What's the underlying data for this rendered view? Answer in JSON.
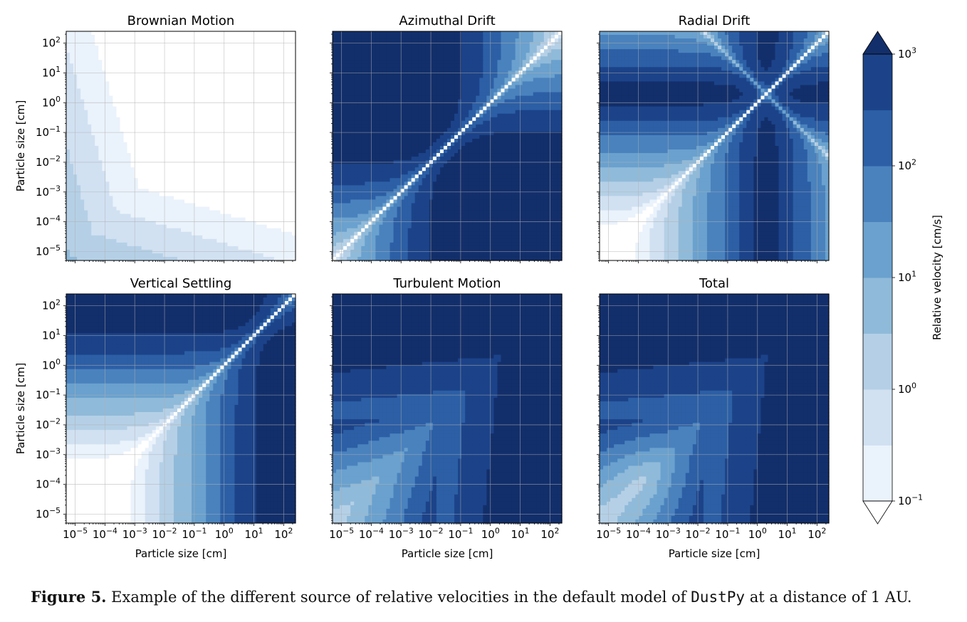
{
  "chart_data": {
    "type": "heatmap",
    "layout": "2x3 grid of filled contour panels sharing one log color scale",
    "x_axis": {
      "label": "Particle size [cm]",
      "scale": "log",
      "range": [
        5e-06,
        250
      ],
      "ticks": [
        1e-05,
        0.0001,
        0.001,
        0.01,
        0.1,
        1.0,
        10.0,
        100.0
      ],
      "tick_labels": [
        {
          "base": "10",
          "exp": "−5"
        },
        {
          "base": "10",
          "exp": "−4"
        },
        {
          "base": "10",
          "exp": "−3"
        },
        {
          "base": "10",
          "exp": "−2"
        },
        {
          "base": "10",
          "exp": "−1"
        },
        {
          "base": "10",
          "exp": "0"
        },
        {
          "base": "10",
          "exp": "1"
        },
        {
          "base": "10",
          "exp": "2"
        }
      ]
    },
    "y_axis": {
      "label": "Particle size [cm]",
      "scale": "log",
      "range": [
        5e-06,
        250
      ],
      "ticks": [
        1e-05,
        0.0001,
        0.001,
        0.01,
        0.1,
        1.0,
        10.0,
        100.0
      ],
      "tick_labels": [
        {
          "base": "10",
          "exp": "−5"
        },
        {
          "base": "10",
          "exp": "−4"
        },
        {
          "base": "10",
          "exp": "−3"
        },
        {
          "base": "10",
          "exp": "−2"
        },
        {
          "base": "10",
          "exp": "−1"
        },
        {
          "base": "10",
          "exp": "0"
        },
        {
          "base": "10",
          "exp": "1"
        },
        {
          "base": "10",
          "exp": "2"
        }
      ]
    },
    "grid": true,
    "colorbar": {
      "label": "Relative velocity [cm/s]",
      "scale": "log",
      "range": [
        0.1,
        1000
      ],
      "levels_per_decade": 2,
      "extend": "both",
      "colormap": "Blues",
      "colors": [
        "#ffffff",
        "#eaf2fb",
        "#d1e1f2",
        "#b5d0e6",
        "#90bad9",
        "#6aa1ce",
        "#4a82bd",
        "#2c5fa5",
        "#1c4389",
        "#132f6b"
      ],
      "ticks": [
        0.1,
        1,
        10,
        100,
        1000
      ],
      "tick_labels": [
        {
          "base": "10",
          "exp": "−1"
        },
        {
          "base": "10",
          "exp": "0"
        },
        {
          "base": "10",
          "exp": "1"
        },
        {
          "base": "10",
          "exp": "2"
        },
        {
          "base": "10",
          "exp": "3"
        }
      ]
    },
    "panels": [
      {
        "id": "brownian",
        "title": "Brownian Motion",
        "row": 0,
        "col": 0,
        "description_velocity_range": [
          0.1,
          10
        ]
      },
      {
        "id": "azimuthal",
        "title": "Azimuthal Drift",
        "row": 0,
        "col": 1,
        "description_velocity_range": [
          0.1,
          1000
        ]
      },
      {
        "id": "radial",
        "title": "Radial Drift",
        "row": 0,
        "col": 2,
        "description_velocity_range": [
          0.1,
          1000
        ]
      },
      {
        "id": "vertical",
        "title": "Vertical Settling",
        "row": 1,
        "col": 0,
        "description_velocity_range": [
          0.1,
          1000
        ]
      },
      {
        "id": "turbulent",
        "title": "Turbulent Motion",
        "row": 1,
        "col": 1,
        "description_velocity_range": [
          1,
          1000
        ]
      },
      {
        "id": "total",
        "title": "Total",
        "row": 1,
        "col": 2,
        "description_velocity_range": [
          1,
          1000
        ]
      }
    ]
  },
  "caption": {
    "label": "Figure 5.",
    "text_before": " Example of the different source of relative velocities in the default model of ",
    "code": "DustPy",
    "text_after": " at a distance of 1 AU."
  }
}
